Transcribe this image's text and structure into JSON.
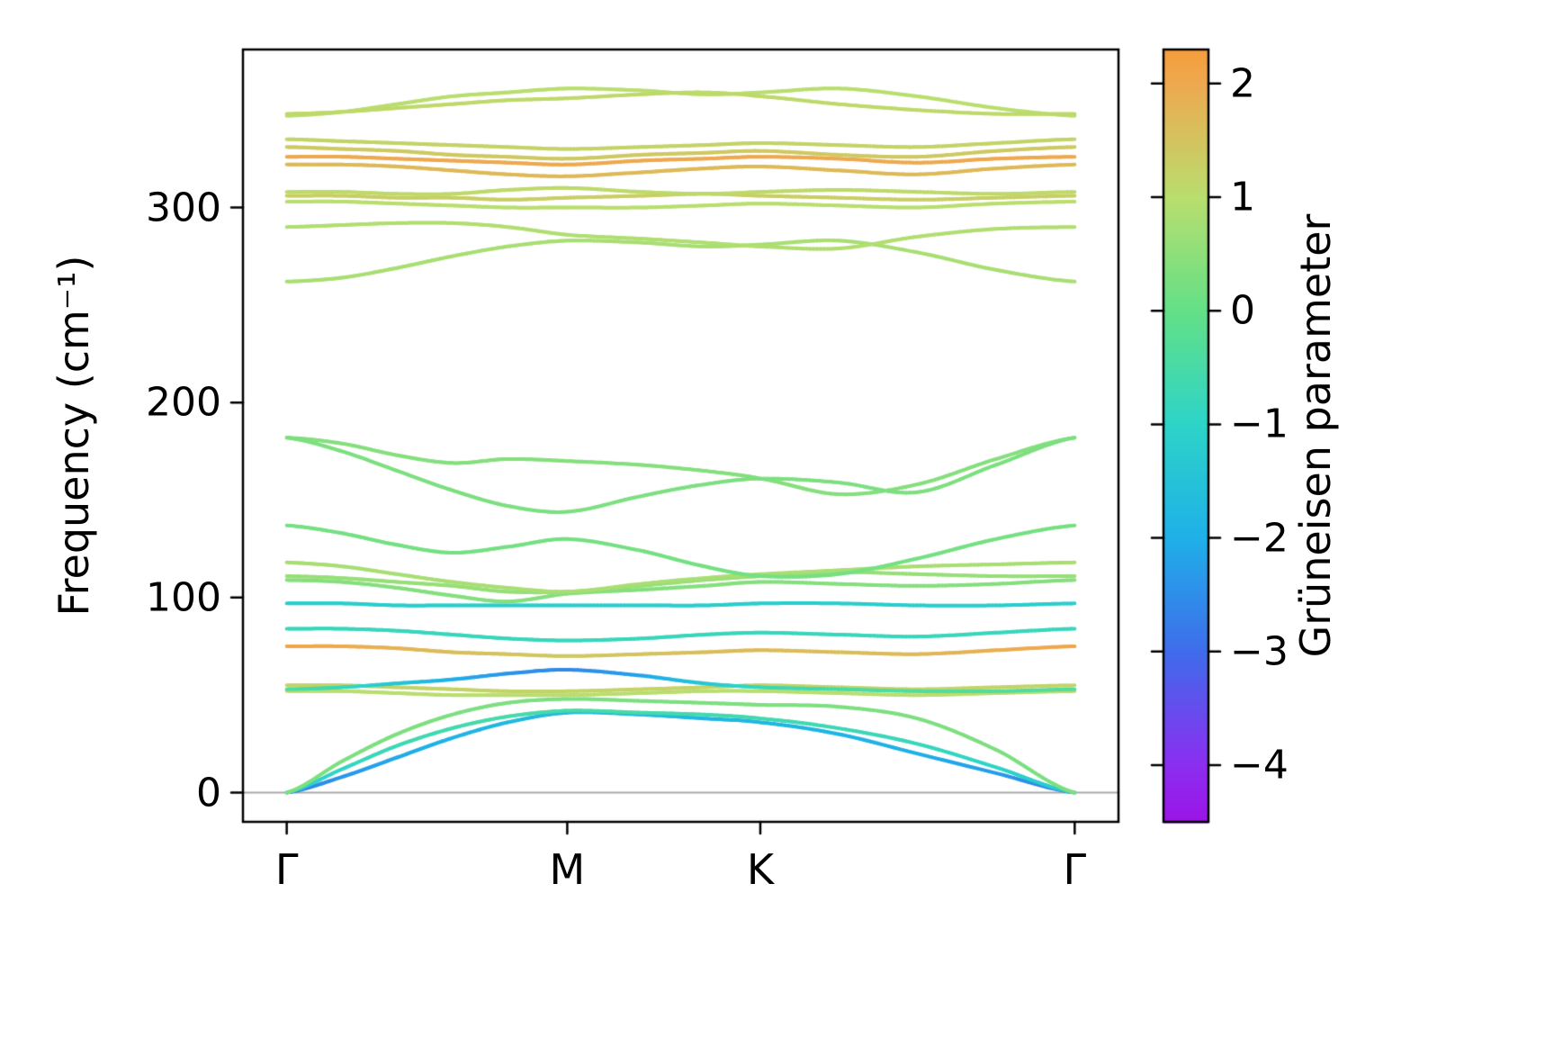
{
  "figure": {
    "background": "#ffffff"
  },
  "axes": {
    "ylabel": "Frequency (cm⁻¹)",
    "ytick_values": [
      0,
      100,
      200,
      300
    ],
    "ytick_labels": [
      "0",
      "100",
      "200",
      "300"
    ],
    "xtick_positions": [
      0,
      0.356,
      0.601,
      1.0
    ],
    "xtick_labels": [
      "Γ",
      "M",
      "K",
      "Γ"
    ],
    "ylim": [
      -15,
      381
    ],
    "zero_line_color": "#aaaaaa",
    "axis_color": "#000000"
  },
  "colorbar": {
    "label": "Grüneisen parameter",
    "vmin": -4.5,
    "vmax": 2.3,
    "tick_values": [
      2,
      1,
      0,
      -1,
      -2,
      -3,
      -4
    ],
    "tick_labels": [
      "2",
      "1",
      "0",
      "−1",
      "−2",
      "−3",
      "−4"
    ],
    "stops": [
      [
        -4.5,
        "#9b14e8"
      ],
      [
        -4.0,
        "#8c2ef0"
      ],
      [
        -3.0,
        "#3f6ceb"
      ],
      [
        -2.0,
        "#1fb0e8"
      ],
      [
        -1.0,
        "#2dd4c8"
      ],
      [
        0.0,
        "#63e087"
      ],
      [
        1.0,
        "#b9de6e"
      ],
      [
        2.0,
        "#eea94f"
      ],
      [
        2.3,
        "#f59d3d"
      ]
    ]
  },
  "chart_data": {
    "type": "line",
    "title": "",
    "xlabel": "",
    "ylabel": "Frequency (cm⁻¹)",
    "x_tick_labels": [
      "Γ",
      "M",
      "K",
      "Γ"
    ],
    "x_segment_points": {
      "Gamma1": 0,
      "M": 0.356,
      "K": 0.601,
      "Gamma2": 1.0
    },
    "ylim": [
      -15,
      381
    ],
    "color_by": "gruneisen",
    "x_path": [
      0,
      0.07,
      0.14,
      0.21,
      0.28,
      0.356,
      0.45,
      0.53,
      0.601,
      0.7,
      0.8,
      0.9,
      1.0
    ],
    "bands": [
      {
        "freq": [
          0,
          8,
          18,
          28,
          36,
          41,
          40,
          38,
          36,
          30,
          20,
          10,
          0
        ],
        "gru": [
          -2.8,
          -2.4,
          -2.1,
          -1.9,
          -1.8,
          -1.7,
          -1.7,
          -1.8,
          -1.8,
          -1.9,
          -2.0,
          -2.3,
          -2.8
        ]
      },
      {
        "freq": [
          0,
          12,
          24,
          33,
          39,
          42,
          41,
          40,
          38,
          33,
          25,
          13,
          0
        ],
        "gru": [
          -1.2,
          -0.9,
          -0.7,
          -0.6,
          -0.5,
          -0.5,
          -0.5,
          -0.6,
          -0.6,
          -0.7,
          -0.8,
          -1.0,
          -1.3
        ]
      },
      {
        "freq": [
          0,
          16,
          30,
          40,
          46,
          48,
          47,
          46,
          45,
          44,
          38,
          22,
          0
        ],
        "gru": 0.3
      },
      {
        "freq": [
          52,
          52,
          51,
          50,
          50,
          50,
          51,
          52,
          52,
          51,
          50,
          51,
          52
        ],
        "gru": 1.0
      },
      {
        "freq": [
          55,
          55,
          54,
          53,
          52,
          52,
          53,
          54,
          55,
          54,
          53,
          54,
          55
        ],
        "gru": 1.2
      },
      {
        "freq": [
          53,
          54,
          56,
          58,
          61,
          63,
          60,
          56,
          54,
          53,
          52,
          52,
          53
        ],
        "gru": [
          -0.3,
          -0.8,
          -1.4,
          -2.0,
          -2.4,
          -2.6,
          -2.2,
          -1.4,
          -0.8,
          -0.5,
          -0.3,
          -0.3,
          -0.3
        ]
      },
      {
        "freq": [
          75,
          75,
          74,
          72,
          71,
          70,
          71,
          72,
          73,
          72,
          71,
          73,
          75
        ],
        "gru": [
          2.1,
          2.0,
          1.8,
          1.6,
          1.5,
          1.4,
          1.5,
          1.6,
          1.7,
          1.6,
          1.7,
          1.9,
          2.1
        ]
      },
      {
        "freq": [
          84,
          84,
          83,
          81,
          79,
          78,
          79,
          81,
          82,
          81,
          80,
          82,
          84
        ],
        "gru": -0.8
      },
      {
        "freq": [
          97,
          97,
          96,
          96,
          96,
          96,
          96,
          96,
          97,
          97,
          96,
          96,
          97
        ],
        "gru": -1.2
      },
      {
        "freq": [
          109,
          108,
          105,
          101,
          98,
          102,
          104,
          106,
          108,
          107,
          106,
          107,
          109
        ],
        "gru": 0.4
      },
      {
        "freq": [
          111,
          110,
          108,
          106,
          103,
          103,
          106,
          109,
          111,
          113,
          112,
          111,
          111
        ],
        "gru": 0.6
      },
      {
        "freq": [
          118,
          116,
          112,
          108,
          105,
          103,
          107,
          110,
          112,
          114,
          116,
          117,
          118
        ],
        "gru": 0.8
      },
      {
        "freq": [
          137,
          133,
          127,
          123,
          126,
          130,
          124,
          116,
          111,
          112,
          120,
          130,
          137
        ],
        "gru": 0.2
      },
      {
        "freq": [
          182,
          179,
          173,
          169,
          171,
          170,
          168,
          165,
          161,
          153,
          158,
          171,
          182
        ],
        "gru": 0.4
      },
      {
        "freq": [
          182,
          175,
          165,
          155,
          147,
          144,
          152,
          158,
          161,
          159,
          154,
          168,
          182
        ],
        "gru": 0.3
      },
      {
        "freq": [
          262,
          264,
          269,
          275,
          280,
          283,
          282,
          280,
          281,
          283,
          277,
          268,
          262
        ],
        "gru": 0.8
      },
      {
        "freq": [
          290,
          291,
          292,
          292,
          290,
          286,
          284,
          282,
          280,
          279,
          285,
          289,
          290
        ],
        "gru": 0.9
      },
      {
        "freq": [
          303,
          303,
          302,
          301,
          300,
          300,
          300,
          301,
          302,
          301,
          300,
          302,
          303
        ],
        "gru": 1.0
      },
      {
        "freq": [
          306,
          306,
          305,
          305,
          304,
          305,
          306,
          307,
          306,
          305,
          304,
          305,
          306
        ],
        "gru": 1.3
      },
      {
        "freq": [
          308,
          308,
          307,
          307,
          309,
          310,
          308,
          307,
          308,
          309,
          308,
          307,
          308
        ],
        "gru": 1.1
      },
      {
        "freq": [
          322,
          322,
          321,
          319,
          317,
          316,
          318,
          320,
          321,
          319,
          317,
          320,
          322
        ],
        "gru": 1.7
      },
      {
        "freq": [
          326,
          326,
          325,
          324,
          323,
          322,
          324,
          325,
          326,
          325,
          323,
          325,
          326
        ],
        "gru": 2.0
      },
      {
        "freq": [
          331,
          330,
          329,
          327,
          326,
          325,
          327,
          328,
          329,
          327,
          326,
          329,
          331
        ],
        "gru": 1.4
      },
      {
        "freq": [
          335,
          334,
          333,
          332,
          331,
          330,
          331,
          332,
          333,
          332,
          331,
          333,
          335
        ],
        "gru": 1.2
      },
      {
        "freq": [
          347,
          349,
          353,
          357,
          359,
          361,
          360,
          358,
          359,
          361,
          357,
          351,
          347
        ],
        "gru": 1.0
      },
      {
        "freq": [
          348,
          349,
          351,
          353,
          355,
          356,
          358,
          359,
          357,
          353,
          350,
          348,
          348
        ],
        "gru": 1.1
      }
    ]
  }
}
